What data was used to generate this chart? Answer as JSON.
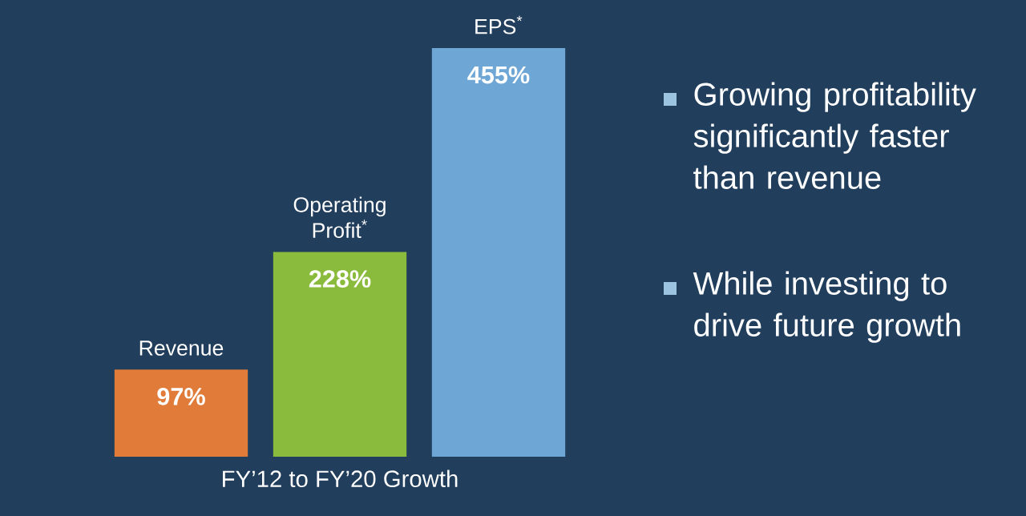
{
  "chart_data": {
    "type": "bar",
    "categories": [
      "Revenue",
      "Operating Profit$^{*}$",
      "EPS$^{*}$"
    ],
    "values": [
      97,
      228,
      455
    ],
    "value_labels": [
      "97%",
      "228%",
      "455%"
    ],
    "colors": [
      "#e07b39",
      "#8bbb3c",
      "#6ea6d6"
    ],
    "xlabel": "FY’12 to FY’20 Growth",
    "annotations": [
      "Growing profitability significantly faster than revenue",
      "While investing to drive future growth"
    ],
    "legend": false
  }
}
